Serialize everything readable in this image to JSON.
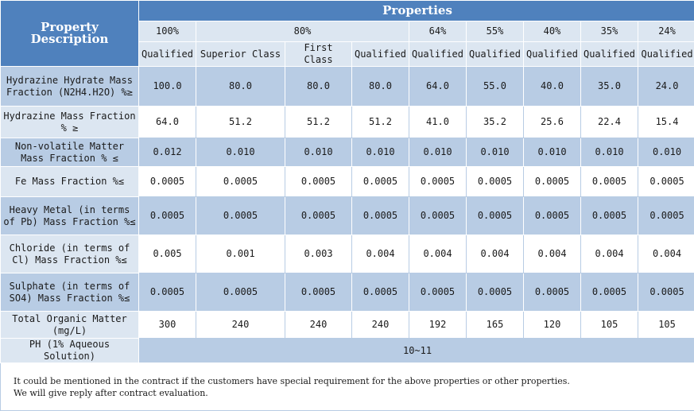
{
  "header": {
    "property_description": "Property Description",
    "properties": "Properties"
  },
  "grades": [
    {
      "label": "100%",
      "span": 1
    },
    {
      "label": "80%",
      "span": 3
    },
    {
      "label": "64%",
      "span": 1
    },
    {
      "label": "55%",
      "span": 1
    },
    {
      "label": "40%",
      "span": 1
    },
    {
      "label": "35%",
      "span": 1
    },
    {
      "label": "24%",
      "span": 1
    }
  ],
  "classes": [
    "Qualified",
    "Superior Class",
    "First Class",
    "Qualified",
    "Qualified",
    "Qualified",
    "Qualified",
    "Qualified",
    "Qualified"
  ],
  "rows": [
    {
      "label": "Hydrazine Hydrate Mass Fraction (N2H4.H2O) %≥",
      "values": [
        "100.0",
        "80.0",
        "80.0",
        "80.0",
        "64.0",
        "55.0",
        "40.0",
        "35.0",
        "24.0"
      ]
    },
    {
      "label": "Hydrazine Mass Fraction % ≥",
      "values": [
        "64.0",
        "51.2",
        "51.2",
        "51.2",
        "41.0",
        "35.2",
        "25.6",
        "22.4",
        "15.4"
      ]
    },
    {
      "label": "Non-volatile Matter Mass Fraction % ≤",
      "values": [
        "0.012",
        "0.010",
        "0.010",
        "0.010",
        "0.010",
        "0.010",
        "0.010",
        "0.010",
        "0.010"
      ]
    },
    {
      "label": "Fe Mass Fraction %≤",
      "values": [
        "0.0005",
        "0.0005",
        "0.0005",
        "0.0005",
        "0.0005",
        "0.0005",
        "0.0005",
        "0.0005",
        "0.0005"
      ]
    },
    {
      "label": "Heavy Metal (in terms of Pb) Mass Fraction %≤",
      "values": [
        "0.0005",
        "0.0005",
        "0.0005",
        "0.0005",
        "0.0005",
        "0.0005",
        "0.0005",
        "0.0005",
        "0.0005"
      ]
    },
    {
      "label": "Chloride (in terms of Cl) Mass Fraction %≤",
      "values": [
        "0.005",
        "0.001",
        "0.003",
        "0.004",
        "0.004",
        "0.004",
        "0.004",
        "0.004",
        "0.004"
      ]
    },
    {
      "label": "Sulphate (in terms of SO4) Mass Fraction %≤",
      "values": [
        "0.0005",
        "0.0005",
        "0.0005",
        "0.0005",
        "0.0005",
        "0.0005",
        "0.0005",
        "0.0005",
        "0.0005"
      ]
    },
    {
      "label": "Total Organic Matter (mg/L)",
      "values": [
        "300",
        "240",
        "240",
        "240",
        "192",
        "165",
        "120",
        "105",
        "105"
      ]
    }
  ],
  "ph_row": {
    "label": "PH (1% Aqueous Solution)",
    "value": "10~11"
  },
  "notes": [
    "It could be mentioned in the contract if the customers have special requirement for the above properties or other properties.",
    "We will give reply after contract evaluation."
  ]
}
